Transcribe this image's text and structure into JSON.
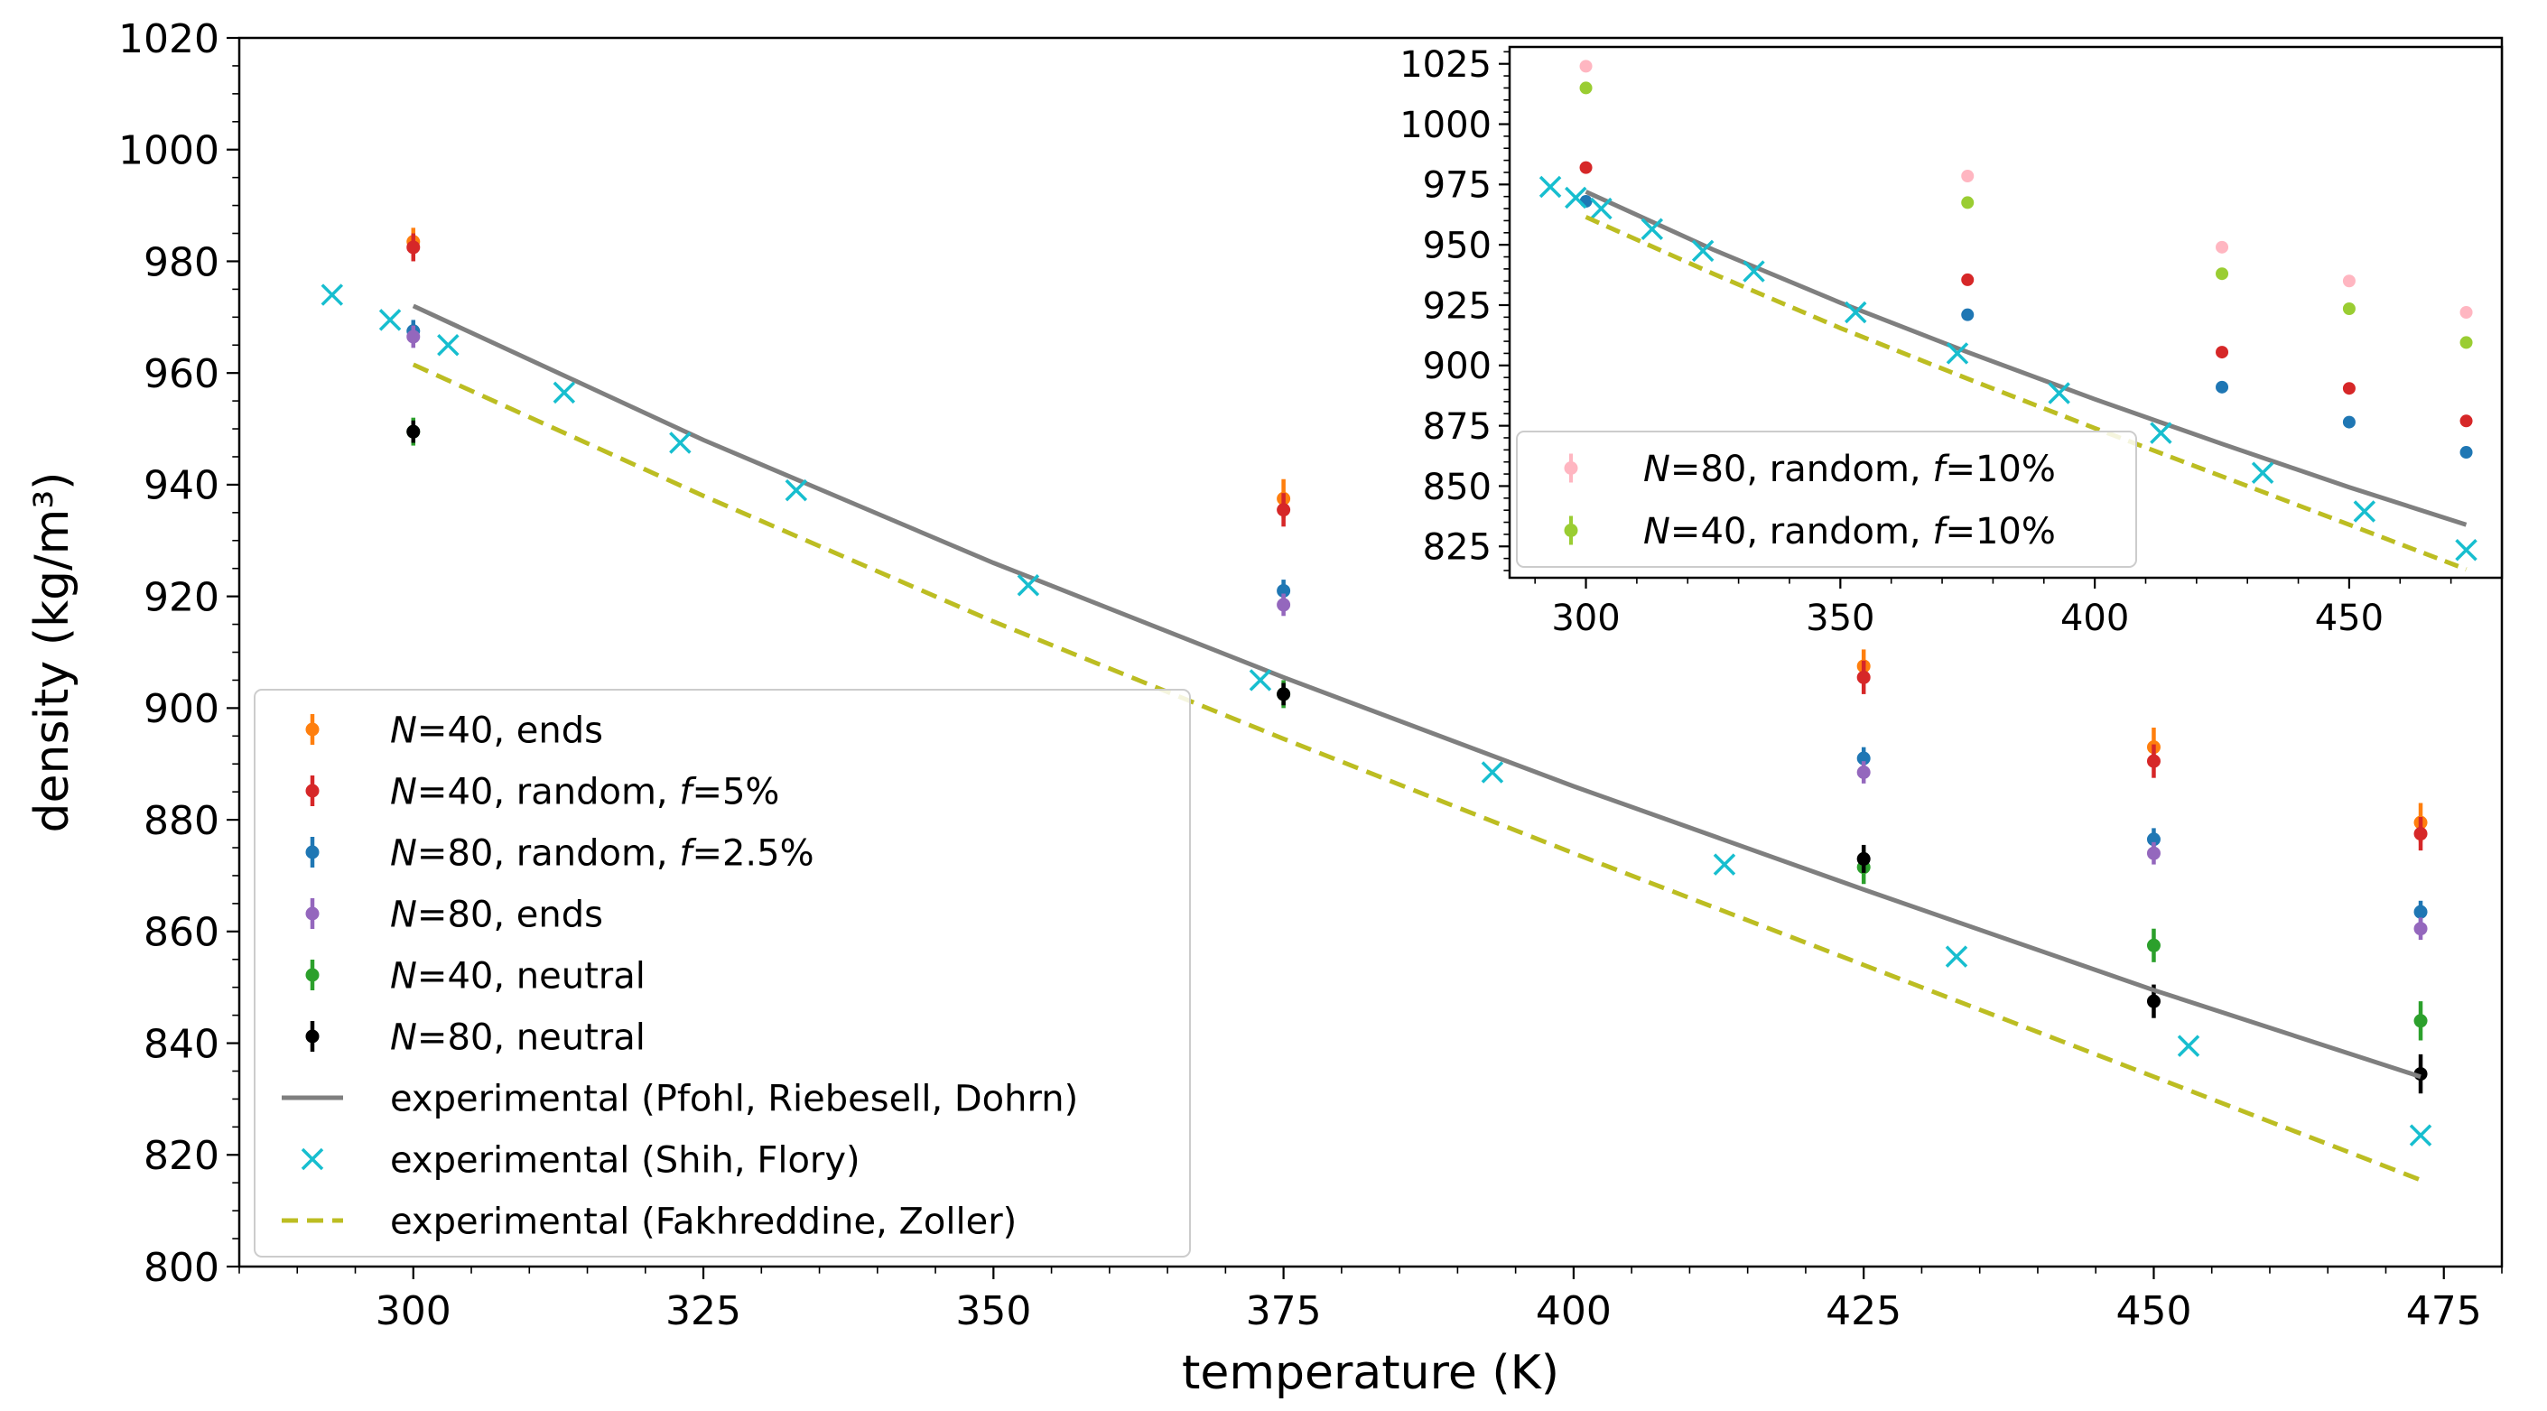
{
  "chart_data": [
    {
      "type": "scatter",
      "panel": "main",
      "xlabel": "temperature (K)",
      "ylabel": "density (kg/m³)",
      "xlim": [
        285,
        480
      ],
      "ylim": [
        800,
        1020
      ],
      "x_ticks": [
        300,
        325,
        350,
        375,
        400,
        425,
        450,
        475
      ],
      "y_ticks": [
        800,
        820,
        840,
        860,
        880,
        900,
        920,
        940,
        960,
        980,
        1000,
        1020
      ],
      "legend_position": "lower-left",
      "series": [
        {
          "name": "N=40, ends",
          "legend": {
            "n": "40",
            "rest": ", ends",
            "f": "",
            "tail": ""
          },
          "color": "#ff7f0e",
          "marker": "errorbar",
          "x": [
            300,
            375,
            425,
            450,
            473
          ],
          "values": [
            983.5,
            937.5,
            907.5,
            893,
            879.5
          ],
          "errors": [
            2.5,
            3.5,
            3,
            3.5,
            3.5
          ]
        },
        {
          "name": "N=40, random, f=5%",
          "legend": {
            "n": "40",
            "rest": ", random, ",
            "f": "f",
            "tail": "=5%"
          },
          "color": "#d62728",
          "marker": "errorbar",
          "x": [
            300,
            375,
            425,
            450,
            473
          ],
          "values": [
            982.5,
            935.5,
            905.5,
            890.5,
            877.5
          ],
          "errors": [
            2.5,
            3,
            3,
            3,
            3
          ]
        },
        {
          "name": "N=80, random, f=2.5%",
          "legend": {
            "n": "80",
            "rest": ", random, ",
            "f": "f",
            "tail": "=2.5%"
          },
          "color": "#1f77b4",
          "marker": "errorbar",
          "x": [
            300,
            375,
            425,
            450,
            473
          ],
          "values": [
            967.5,
            921,
            891,
            876.5,
            863.5
          ],
          "errors": [
            2,
            2,
            2,
            2,
            2
          ]
        },
        {
          "name": "N=80, ends",
          "legend": {
            "n": "80",
            "rest": ", ends",
            "f": "",
            "tail": ""
          },
          "color": "#9467bd",
          "marker": "errorbar",
          "x": [
            300,
            375,
            425,
            450,
            473
          ],
          "values": [
            966.5,
            918.5,
            888.5,
            874,
            860.5
          ],
          "errors": [
            2,
            2,
            2,
            2,
            2
          ]
        },
        {
          "name": "N=40, neutral",
          "legend": {
            "n": "40",
            "rest": ", neutral",
            "f": "",
            "tail": ""
          },
          "color": "#2ca02c",
          "marker": "errorbar",
          "x": [
            300,
            375,
            425,
            450,
            473
          ],
          "values": [
            949.5,
            902.5,
            871.5,
            857.5,
            844
          ],
          "errors": [
            2.5,
            2.5,
            3,
            3,
            3.5
          ]
        },
        {
          "name": "N=80, neutral",
          "legend": {
            "n": "80",
            "rest": ", neutral",
            "f": "",
            "tail": ""
          },
          "color": "#000000",
          "marker": "errorbar",
          "x": [
            300,
            375,
            425,
            450,
            473
          ],
          "values": [
            949.5,
            902.5,
            873,
            847.5,
            834.5
          ],
          "errors": [
            2,
            2,
            2.5,
            3,
            3.5
          ]
        },
        {
          "name": "experimental (Pfohl, Riebesell, Dohrn)",
          "legend": {
            "label": "experimental (Pfohl, Riebesell, Dohrn)"
          },
          "color": "#7f7f7f",
          "marker": "line",
          "x": [
            300,
            325,
            350,
            375,
            400,
            425,
            450,
            473
          ],
          "values": [
            972,
            948,
            926,
            905.5,
            886,
            867.5,
            849.5,
            834
          ]
        },
        {
          "name": "experimental (Shih, Flory)",
          "legend": {
            "label": "experimental (Shih, Flory)"
          },
          "color": "#17becf",
          "marker": "x",
          "x": [
            293,
            298,
            303,
            313,
            323,
            333,
            353,
            373,
            393,
            413,
            433,
            453,
            473
          ],
          "values": [
            974,
            969.5,
            965,
            956.5,
            947.5,
            939,
            922,
            905,
            888.5,
            872,
            855.5,
            839.5,
            823.5
          ]
        },
        {
          "name": "experimental (Fakhreddine, Zoller)",
          "legend": {
            "label": "experimental (Fakhreddine, Zoller)"
          },
          "color": "#bcbd22",
          "marker": "dashed",
          "x": [
            300,
            325,
            350,
            375,
            400,
            425,
            450,
            473
          ],
          "values": [
            961.5,
            938,
            915.5,
            894.5,
            874,
            854,
            834,
            815.5
          ]
        }
      ]
    },
    {
      "type": "scatter",
      "panel": "inset",
      "xlim": [
        285,
        480
      ],
      "ylim": [
        812,
        1032
      ],
      "x_ticks": [
        300,
        350,
        400,
        450
      ],
      "y_ticks": [
        825,
        850,
        875,
        900,
        925,
        950,
        975,
        1000,
        1025
      ],
      "legend_position": "lower-left",
      "series": [
        {
          "name": "N=80, random, f=10%",
          "legend": {
            "n": "80",
            "rest": ", random, ",
            "f": "f",
            "tail": "=10%"
          },
          "color": "#ffb6c1",
          "marker": "errorbar",
          "in_legend": true,
          "x": [
            300,
            375,
            425,
            450,
            473
          ],
          "values": [
            1024,
            978.5,
            949,
            935,
            922
          ],
          "errors": [
            1.5,
            1.5,
            1.5,
            1.5,
            1.5
          ]
        },
        {
          "name": "N=40, random, f=10%",
          "legend": {
            "n": "40",
            "rest": ", random, ",
            "f": "f",
            "tail": "=10%"
          },
          "color": "#9acd32",
          "marker": "errorbar",
          "in_legend": true,
          "x": [
            300,
            375,
            425,
            450,
            473
          ],
          "values": [
            1015,
            967.5,
            938,
            923.5,
            909.5
          ],
          "errors": [
            1.5,
            1.5,
            1.5,
            1.5,
            1.5
          ]
        },
        {
          "name": "N=40, random, f=5%",
          "color": "#d62728",
          "marker": "errorbar",
          "in_legend": false,
          "x": [
            300,
            375,
            425,
            450,
            473
          ],
          "values": [
            982,
            935.5,
            905.5,
            890.5,
            877
          ],
          "errors": [
            1,
            1,
            1,
            1,
            1
          ]
        },
        {
          "name": "N=80, random, f=2.5%",
          "color": "#1f77b4",
          "marker": "errorbar",
          "in_legend": false,
          "x": [
            300,
            375,
            425,
            450,
            473
          ],
          "values": [
            968,
            921,
            891,
            876.5,
            864
          ],
          "errors": [
            1,
            1,
            1,
            1,
            1
          ]
        },
        {
          "name": "experimental (Pfohl, Riebesell, Dohrn)",
          "color": "#7f7f7f",
          "marker": "line",
          "in_legend": false,
          "x": [
            300,
            325,
            350,
            375,
            400,
            425,
            450,
            473
          ],
          "values": [
            972,
            948,
            926,
            905.5,
            886,
            867.5,
            849.5,
            834
          ]
        },
        {
          "name": "experimental (Shih, Flory)",
          "color": "#17becf",
          "marker": "x",
          "in_legend": false,
          "x": [
            293,
            298,
            303,
            313,
            323,
            333,
            353,
            373,
            393,
            413,
            433,
            453,
            473
          ],
          "values": [
            974,
            969.5,
            965,
            956.5,
            947.5,
            939,
            922,
            905,
            888.5,
            872,
            855.5,
            839.5,
            823.5
          ]
        },
        {
          "name": "experimental (Fakhreddine, Zoller)",
          "color": "#bcbd22",
          "marker": "dashed",
          "in_legend": false,
          "x": [
            300,
            325,
            350,
            375,
            400,
            425,
            450,
            473
          ],
          "values": [
            961.5,
            938,
            915.5,
            894.5,
            874,
            854,
            834,
            815.5
          ]
        }
      ]
    }
  ]
}
